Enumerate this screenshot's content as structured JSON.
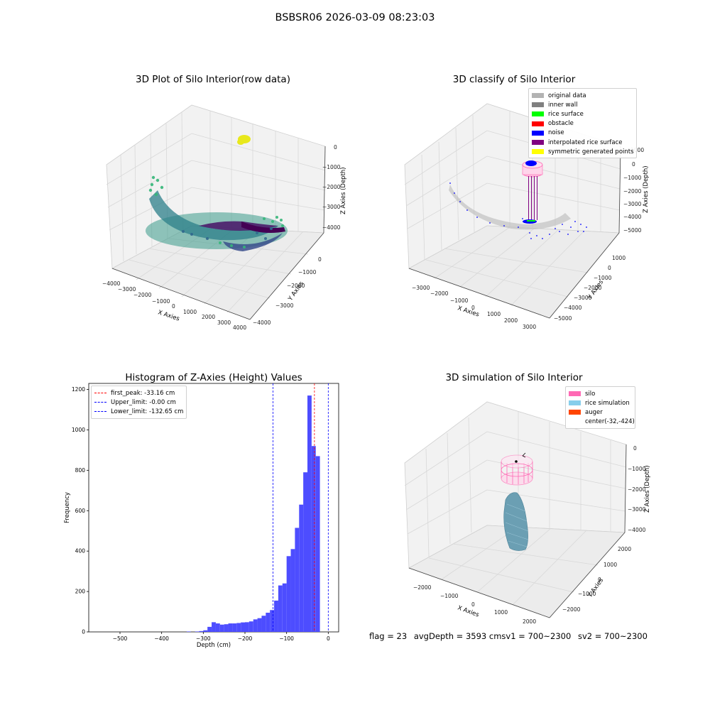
{
  "suptitle": "BSBSR06 2026-03-09 08:23:03",
  "panels": {
    "raw": {
      "title": "3D Plot of Silo Interior(row data)",
      "xlabel": "X Axies",
      "ylabel": "Y Axies",
      "zlabel": "Z Axies (Depth)",
      "xticks": [
        "−4000",
        "−3000",
        "−2000",
        "−1000",
        "0",
        "1000",
        "2000",
        "3000",
        "4000"
      ],
      "yticks": [
        "0",
        "−1000",
        "−2000",
        "−3000",
        "−4000"
      ],
      "zticks": [
        "0",
        "−1000",
        "−2000",
        "−3000",
        "−4000"
      ]
    },
    "classify": {
      "title": "3D classify of Silo Interior",
      "xlabel": "X Axies",
      "ylabel": "Y Axies",
      "zlabel": "Z Axies (Depth)",
      "xticks": [
        "−3000",
        "−2000",
        "−1000",
        "0",
        "1000",
        "2000",
        "3000"
      ],
      "yticks": [
        "1000",
        "0",
        "−1000",
        "−2000",
        "−3000",
        "−4000",
        "−5000"
      ],
      "zticks": [
        "1000",
        "0",
        "−1000",
        "−2000",
        "−3000",
        "−4000",
        "−5000"
      ],
      "legend": [
        {
          "label": "original data",
          "color": "#b3b3b3"
        },
        {
          "label": "inner wall",
          "color": "#808080"
        },
        {
          "label": "rice surface",
          "color": "#00ff00"
        },
        {
          "label": "obstacle",
          "color": "#ff0000"
        },
        {
          "label": "noise",
          "color": "#0000ff"
        },
        {
          "label": "interpolated rice surface",
          "color": "#800080"
        },
        {
          "label": "symmetric generated points",
          "color": "#ffff00"
        }
      ]
    },
    "simulation": {
      "title": "3D simulation of Silo Interior",
      "xlabel": "X Axies",
      "ylabel": "Y Axies",
      "zlabel": "Z Axies (Depth)",
      "xticks": [
        "−2000",
        "−1000",
        "0",
        "1000",
        "2000"
      ],
      "yticks": [
        "2000",
        "1000",
        "0",
        "−1000",
        "−2000"
      ],
      "zticks": [
        "0",
        "−1000",
        "−2000",
        "−3000",
        "−4000"
      ],
      "legend": [
        {
          "label": "silo",
          "color": "#ff69b4"
        },
        {
          "label": "rice simulation",
          "color": "#87ceeb"
        },
        {
          "label": "auger",
          "color": "#ff4500"
        },
        {
          "label": "center(-32,-424)",
          "color": ""
        }
      ]
    }
  },
  "status": {
    "flag": "flag = 23",
    "avg": "avgDepth = 3593 cm",
    "sv1": "sv1 = 700~2300",
    "sv2": "sv2 = 700~2300"
  },
  "chart_data": [
    {
      "type": "bar",
      "title": "Histogram of Z-Axies (Height) Values",
      "xlabel": "Depth (cm)",
      "ylabel": "Frequency",
      "xlim": [
        -575,
        25
      ],
      "ylim": [
        0,
        1230
      ],
      "xticks": [
        -500,
        -400,
        -300,
        -200,
        -100,
        0
      ],
      "yticks": [
        0,
        200,
        400,
        600,
        800,
        1000,
        1200
      ],
      "bin_width": 10,
      "bar_color": "#4d4dff",
      "bins": [
        {
          "x": -340,
          "v": 2
        },
        {
          "x": -320,
          "v": 2
        },
        {
          "x": -310,
          "v": 4
        },
        {
          "x": -300,
          "v": 8
        },
        {
          "x": -290,
          "v": 25
        },
        {
          "x": -280,
          "v": 48
        },
        {
          "x": -270,
          "v": 42
        },
        {
          "x": -260,
          "v": 36
        },
        {
          "x": -250,
          "v": 38
        },
        {
          "x": -240,
          "v": 42
        },
        {
          "x": -230,
          "v": 42
        },
        {
          "x": -220,
          "v": 44
        },
        {
          "x": -210,
          "v": 47
        },
        {
          "x": -200,
          "v": 48
        },
        {
          "x": -190,
          "v": 52
        },
        {
          "x": -180,
          "v": 62
        },
        {
          "x": -170,
          "v": 68
        },
        {
          "x": -160,
          "v": 80
        },
        {
          "x": -150,
          "v": 95
        },
        {
          "x": -140,
          "v": 108
        },
        {
          "x": -130,
          "v": 155
        },
        {
          "x": -120,
          "v": 230
        },
        {
          "x": -110,
          "v": 240
        },
        {
          "x": -100,
          "v": 375
        },
        {
          "x": -90,
          "v": 410
        },
        {
          "x": -80,
          "v": 515
        },
        {
          "x": -70,
          "v": 630
        },
        {
          "x": -60,
          "v": 790
        },
        {
          "x": -50,
          "v": 1170
        },
        {
          "x": -40,
          "v": 920
        },
        {
          "x": -30,
          "v": 870
        }
      ],
      "vlines": [
        {
          "x": -33.16,
          "color": "#ff0000",
          "label": "first_peak: -33.16 cm"
        },
        {
          "x": -0.0,
          "color": "#0000ff",
          "label": "Upper_limit: -0.00 cm"
        },
        {
          "x": -132.65,
          "color": "#0000ff",
          "label": "Lower_limit: -132.65 cm"
        }
      ],
      "legend_position": "upper-left"
    }
  ]
}
